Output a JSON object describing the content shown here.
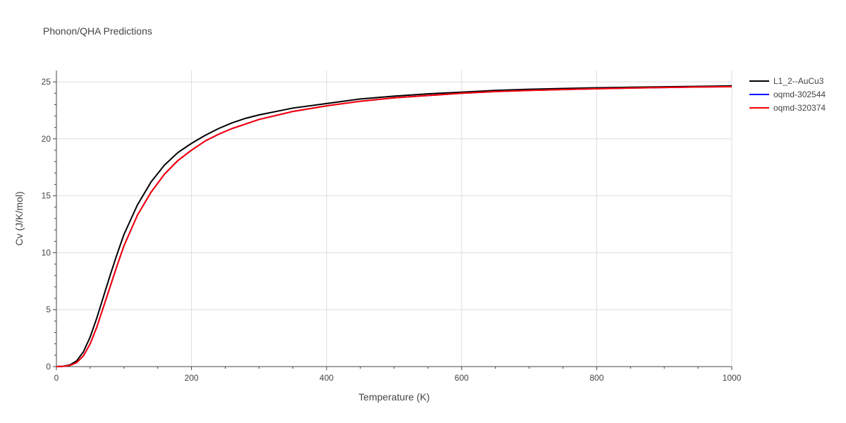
{
  "chart_data": {
    "type": "line",
    "title": "Phonon/QHA Predictions",
    "xlabel": "Temperature (K)",
    "ylabel": "Cv (J/K/mol)",
    "xlim": [
      0,
      1000
    ],
    "ylim": [
      0,
      26
    ],
    "x_ticks": [
      0,
      200,
      400,
      600,
      800,
      1000
    ],
    "y_ticks": [
      0,
      5,
      10,
      15,
      20,
      25
    ],
    "grid": true,
    "legend_position": "top-right",
    "series": [
      {
        "name": "L1_2--AuCu3",
        "color": "#000000",
        "x": [
          0,
          10,
          20,
          30,
          40,
          50,
          60,
          70,
          80,
          90,
          100,
          120,
          140,
          160,
          180,
          200,
          220,
          240,
          260,
          280,
          300,
          350,
          400,
          450,
          500,
          550,
          600,
          650,
          700,
          750,
          800,
          850,
          900,
          950,
          1000
        ],
        "y": [
          0,
          0.03,
          0.15,
          0.5,
          1.3,
          2.6,
          4.3,
          6.2,
          8.1,
          9.9,
          11.6,
          14.2,
          16.2,
          17.7,
          18.8,
          19.6,
          20.3,
          20.9,
          21.4,
          21.8,
          22.1,
          22.7,
          23.1,
          23.5,
          23.75,
          23.95,
          24.1,
          24.25,
          24.35,
          24.42,
          24.48,
          24.53,
          24.57,
          24.61,
          24.65
        ]
      },
      {
        "name": "oqmd-302544",
        "color": "#0000ff",
        "x": [
          0,
          10,
          20,
          30,
          40,
          50,
          60,
          70,
          80,
          90,
          100,
          120,
          140,
          160,
          180,
          200,
          220,
          240,
          260,
          280,
          300,
          350,
          400,
          450,
          500,
          550,
          600,
          650,
          700,
          750,
          800,
          850,
          900,
          950,
          1000
        ],
        "y": [
          0,
          0.02,
          0.1,
          0.35,
          0.95,
          2.0,
          3.5,
          5.3,
          7.1,
          8.9,
          10.6,
          13.3,
          15.3,
          16.9,
          18.1,
          19.0,
          19.8,
          20.4,
          20.9,
          21.3,
          21.7,
          22.4,
          22.9,
          23.3,
          23.6,
          23.8,
          24.0,
          24.15,
          24.25,
          24.33,
          24.4,
          24.46,
          24.51,
          24.55,
          24.58
        ]
      },
      {
        "name": "oqmd-320374",
        "color": "#ff0000",
        "x": [
          0,
          10,
          20,
          30,
          40,
          50,
          60,
          70,
          80,
          90,
          100,
          120,
          140,
          160,
          180,
          200,
          220,
          240,
          260,
          280,
          300,
          350,
          400,
          450,
          500,
          550,
          600,
          650,
          700,
          750,
          800,
          850,
          900,
          950,
          1000
        ],
        "y": [
          0,
          0.02,
          0.1,
          0.35,
          0.95,
          2.0,
          3.5,
          5.3,
          7.1,
          8.9,
          10.6,
          13.3,
          15.3,
          16.9,
          18.1,
          19.0,
          19.8,
          20.4,
          20.9,
          21.3,
          21.7,
          22.4,
          22.9,
          23.3,
          23.6,
          23.8,
          24.0,
          24.15,
          24.25,
          24.33,
          24.4,
          24.46,
          24.51,
          24.55,
          24.58
        ]
      }
    ]
  },
  "colors": {
    "grid": "#dddddd",
    "axis": "#444444",
    "text": "#444444"
  }
}
